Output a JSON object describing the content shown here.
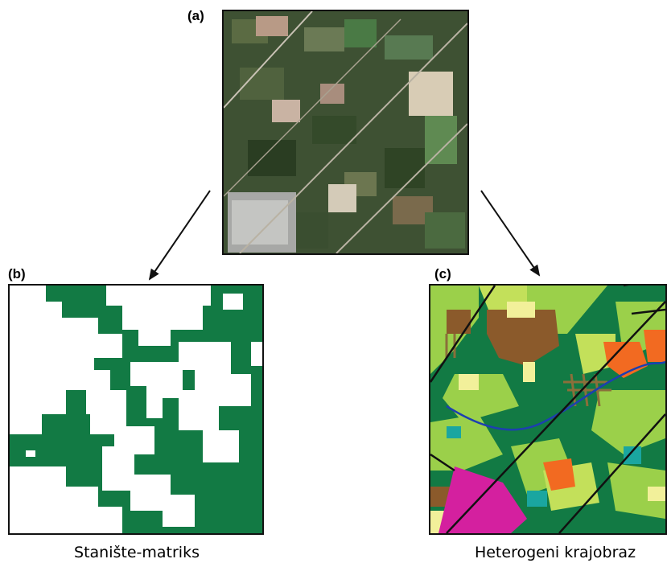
{
  "panels": {
    "a": {
      "label": "(a)"
    },
    "b": {
      "label": "(b)",
      "caption": "Stanište-matriks"
    },
    "c": {
      "label": "(c)",
      "caption": "Heterogeni krajobraz"
    }
  },
  "colors": {
    "habitat_green": "#127a44",
    "matrix_white": "#ffffff",
    "light_green": "#9bd04a",
    "lime": "#c3e05a",
    "brown": "#8b5a2b",
    "orange": "#f26a21",
    "magenta": "#d4209f",
    "teal": "#1aa6a0",
    "pale_yellow": "#f2f09a",
    "river_blue": "#1d3fb0"
  }
}
